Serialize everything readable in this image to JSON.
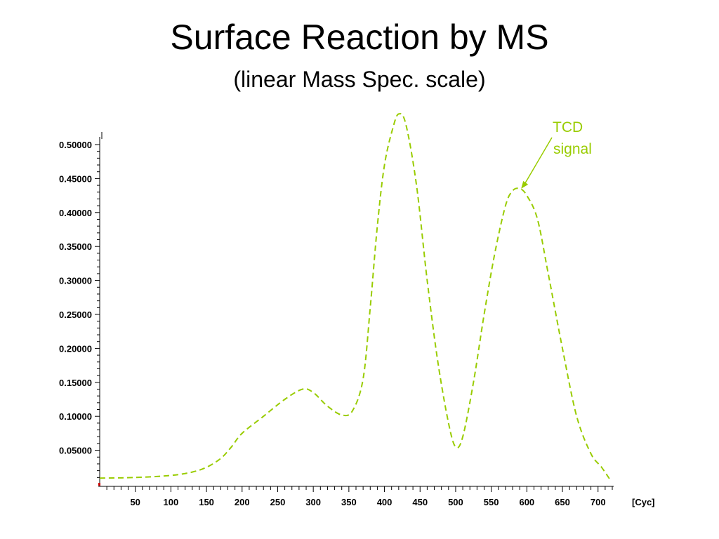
{
  "title": "Surface Reaction by MS",
  "subtitle": "(linear Mass Spec. scale)",
  "colors": {
    "series": "#99cc00",
    "axis": "#000000"
  },
  "chart_data": {
    "type": "line",
    "xlabel": "[Cyc]",
    "ylabel": "",
    "xlim": [
      0,
      720
    ],
    "ylim": [
      0,
      0.5
    ],
    "grid": false,
    "legend": "none",
    "x_ticks": [
      "50",
      "100",
      "150",
      "200",
      "250",
      "300",
      "350",
      "400",
      "450",
      "500",
      "550",
      "600",
      "650",
      "700"
    ],
    "y_ticks": [
      "0.05000",
      "0.10000",
      "0.15000",
      "0.20000",
      "0.25000",
      "0.30000",
      "0.35000",
      "0.40000",
      "0.45000",
      "0.50000"
    ],
    "series": [
      {
        "line_style": "dashed",
        "x": [
          0,
          50,
          100,
          130,
          150,
          170,
          185,
          200,
          230,
          260,
          285,
          300,
          320,
          340,
          355,
          370,
          380,
          390,
          400,
          412,
          420,
          430,
          445,
          460,
          475,
          490,
          500,
          510,
          525,
          540,
          555,
          570,
          580,
          590,
          600,
          615,
          630,
          650,
          670,
          690,
          705,
          718
        ],
        "y": [
          0.009,
          0.01,
          0.013,
          0.018,
          0.025,
          0.038,
          0.055,
          0.075,
          0.1,
          0.125,
          0.14,
          0.135,
          0.115,
          0.102,
          0.108,
          0.155,
          0.26,
          0.38,
          0.47,
          0.525,
          0.545,
          0.53,
          0.44,
          0.3,
          0.18,
          0.09,
          0.055,
          0.07,
          0.15,
          0.25,
          0.34,
          0.41,
          0.432,
          0.435,
          0.425,
          0.39,
          0.31,
          0.2,
          0.1,
          0.045,
          0.025,
          0.005
        ]
      }
    ],
    "annotations": [
      {
        "text_line1": "TCD",
        "text_line2": "signal",
        "x": 590,
        "y": 0.435
      }
    ]
  }
}
